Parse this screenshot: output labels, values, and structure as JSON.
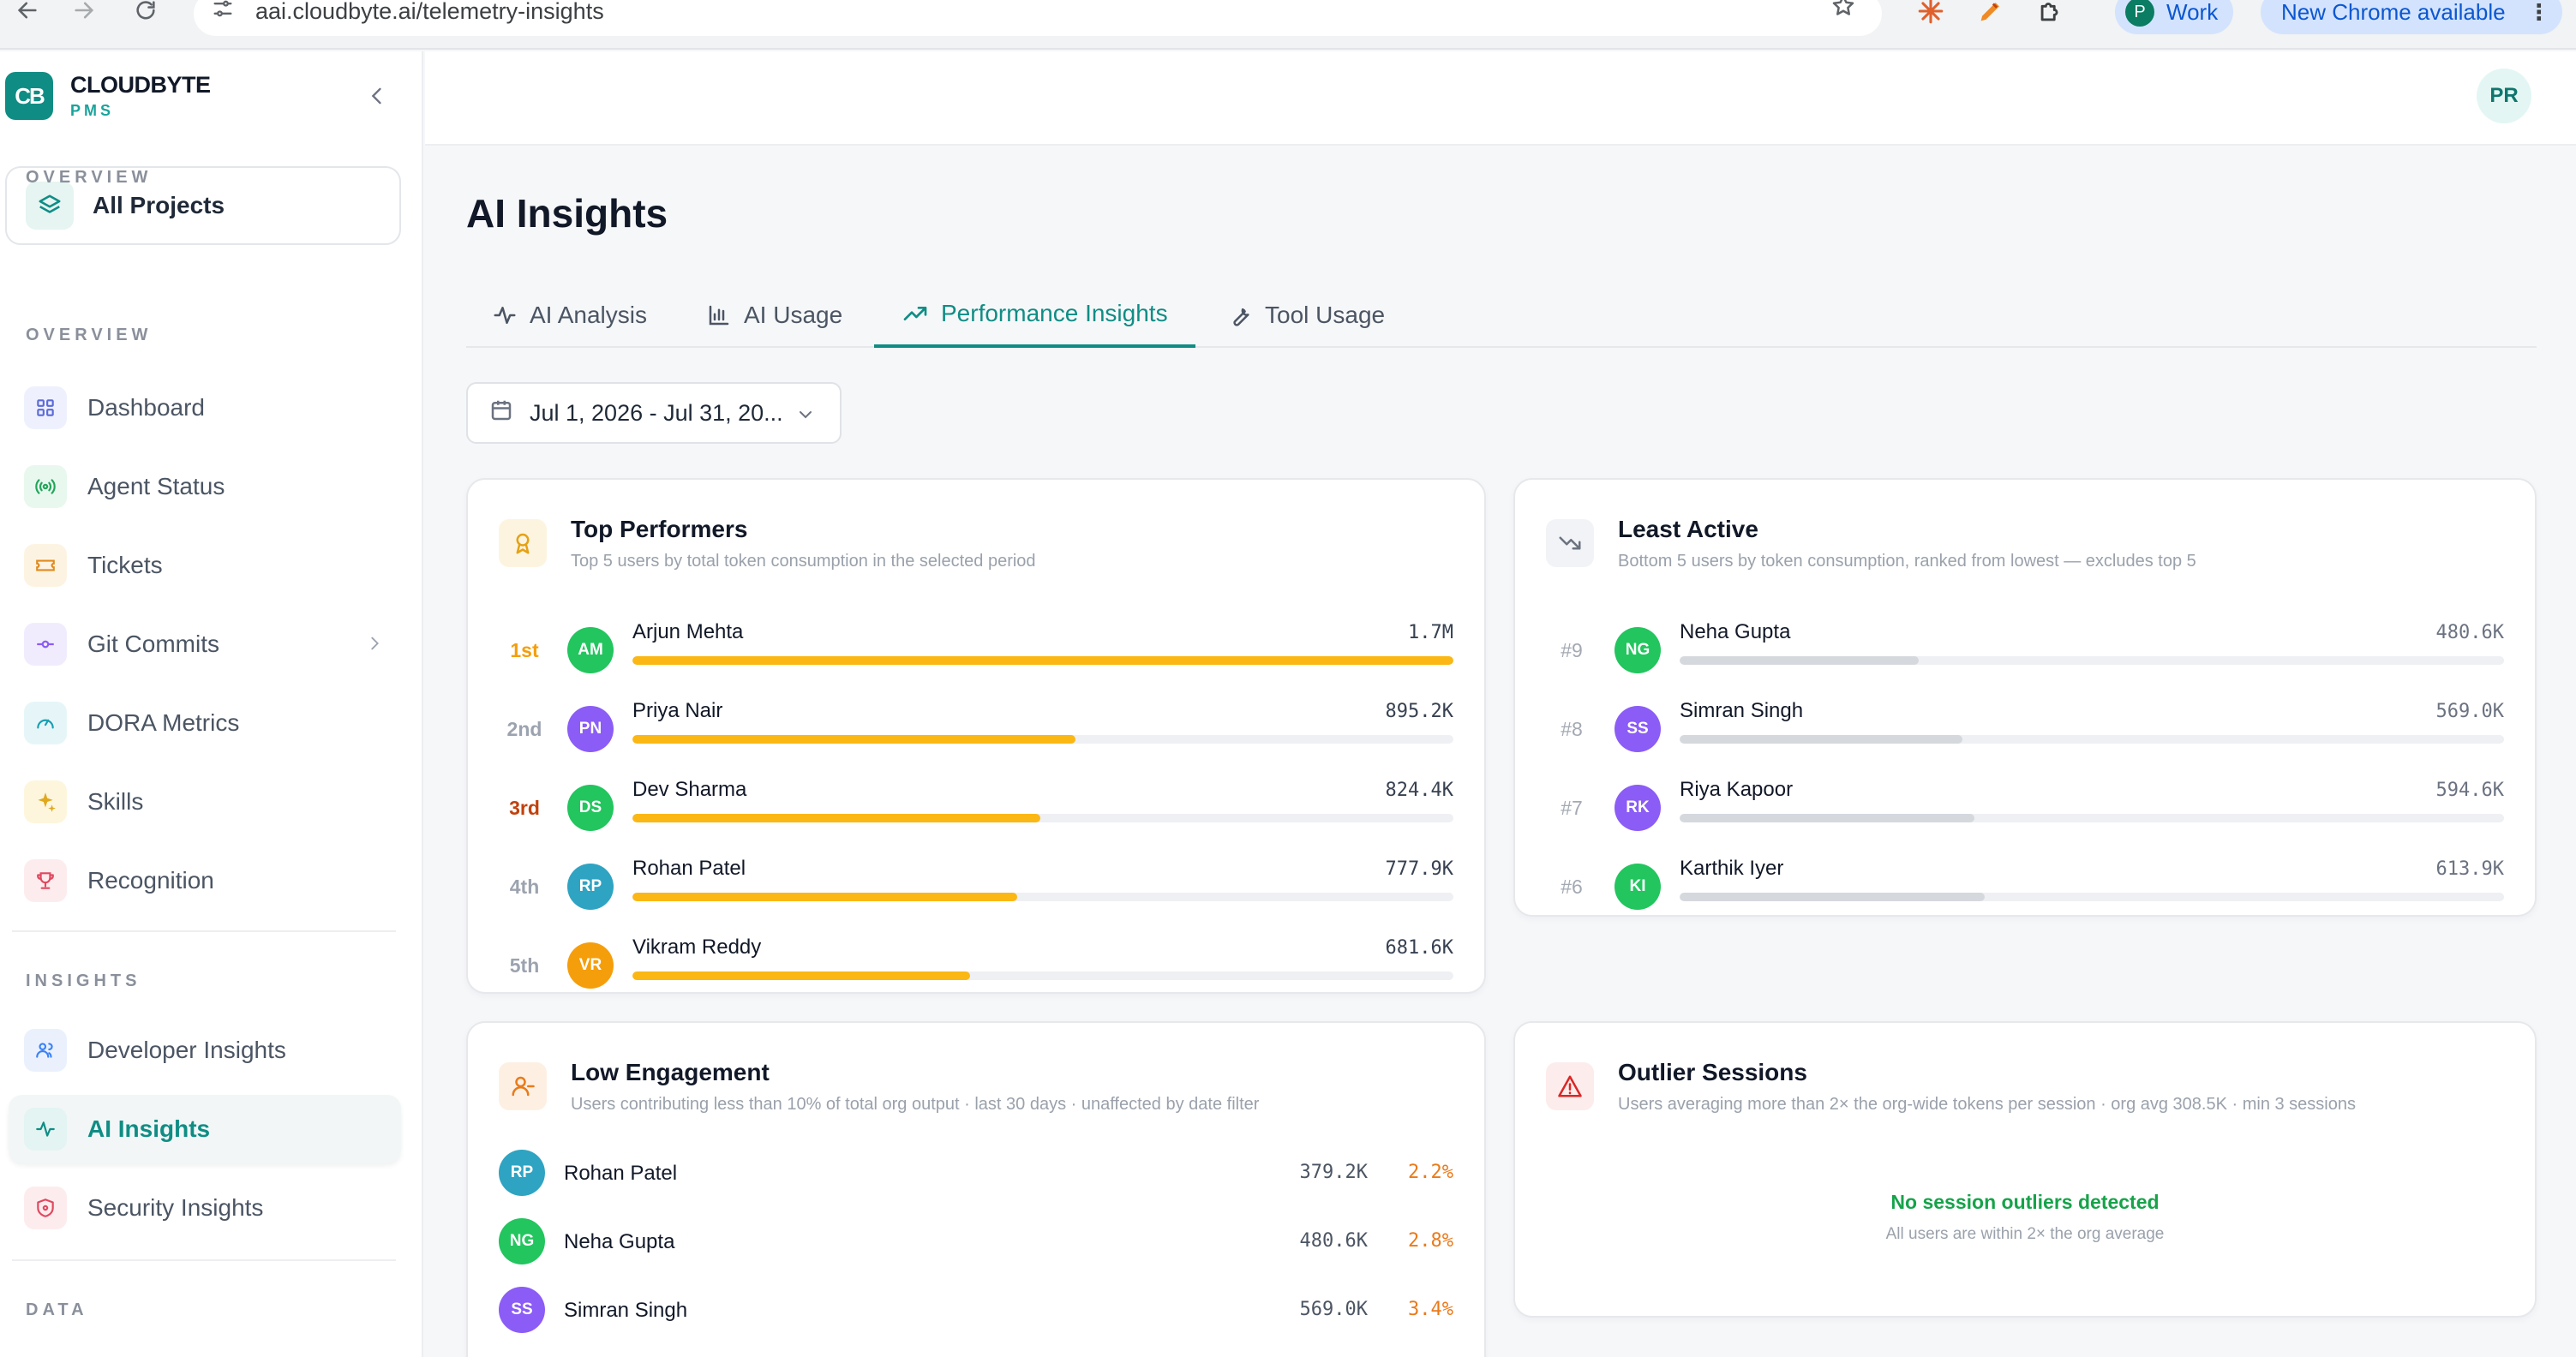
{
  "browser": {
    "url": "aai.cloudbyte.ai/telemetry-insights",
    "profile_initial": "P",
    "profile_label": "Work",
    "update_label": "New Chrome available"
  },
  "brand": {
    "name": "CLOUDBYTE",
    "sub": "PMS",
    "logo_text": "CB"
  },
  "sidebar": {
    "all_projects": "All Projects",
    "sections": {
      "overview": "OVERVIEW",
      "insights": "INSIGHTS",
      "data": "DATA"
    },
    "overview_items": [
      {
        "label": "Dashboard",
        "icon": "grid-icon"
      },
      {
        "label": "Agent Status",
        "icon": "broadcast-icon"
      },
      {
        "label": "Tickets",
        "icon": "ticket-icon"
      },
      {
        "label": "Git Commits",
        "icon": "git-commit-icon"
      },
      {
        "label": "DORA Metrics",
        "icon": "gauge-icon"
      },
      {
        "label": "Skills",
        "icon": "sparkles-icon"
      },
      {
        "label": "Recognition",
        "icon": "trophy-icon"
      }
    ],
    "insights_items": [
      {
        "label": "Developer Insights",
        "icon": "users-icon"
      },
      {
        "label": "AI Insights",
        "icon": "activity-icon",
        "active": true
      },
      {
        "label": "Security Insights",
        "icon": "shield-icon"
      }
    ]
  },
  "header": {
    "user_initials": "PR"
  },
  "page": {
    "title": "AI Insights",
    "tabs": [
      {
        "label": "AI Analysis",
        "icon": "activity-icon"
      },
      {
        "label": "AI Usage",
        "icon": "bar-chart-icon"
      },
      {
        "label": "Performance Insights",
        "icon": "trending-up-icon",
        "active": true
      },
      {
        "label": "Tool Usage",
        "icon": "wrench-icon"
      }
    ],
    "date_range": "Jul 1, 2026 - Jul 31, 20..."
  },
  "colors": {
    "accent": "#0f8d84",
    "gold_bar": "#fbb714",
    "gray_bar": "#d5d9de",
    "warning_orange": "#ea7a1a",
    "success_green": "#16a34a",
    "alert_red": "#dc2626"
  },
  "top_performers": {
    "title": "Top Performers",
    "subtitle": "Top 5 users by total token consumption in the selected period",
    "rows": [
      {
        "rank": "1st",
        "initials": "AM",
        "name": "Arjun Mehta",
        "value": "1.7M",
        "share": 1.0,
        "avatar_color": "#22c55e",
        "rank_color": "#f59e0b"
      },
      {
        "rank": "2nd",
        "initials": "PN",
        "name": "Priya Nair",
        "value": "895.2K",
        "share": 0.54,
        "avatar_color": "#8b5cf6",
        "rank_color": "#9ca3af"
      },
      {
        "rank": "3rd",
        "initials": "DS",
        "name": "Dev Sharma",
        "value": "824.4K",
        "share": 0.497,
        "avatar_color": "#22c55e",
        "rank_color": "#c2410c"
      },
      {
        "rank": "4th",
        "initials": "RP",
        "name": "Rohan Patel",
        "value": "777.9K",
        "share": 0.469,
        "avatar_color": "#2fa3c2",
        "rank_color": "#9ca3af"
      },
      {
        "rank": "5th",
        "initials": "VR",
        "name": "Vikram Reddy",
        "value": "681.6K",
        "share": 0.411,
        "avatar_color": "#f59e0b",
        "rank_color": "#9ca3af"
      }
    ]
  },
  "least_active": {
    "title": "Least Active",
    "subtitle": "Bottom 5 users by token consumption, ranked from lowest — excludes top 5",
    "rows": [
      {
        "rank": "#9",
        "initials": "NG",
        "name": "Neha Gupta",
        "value": "480.6K",
        "share": 0.29,
        "avatar_color": "#22c55e"
      },
      {
        "rank": "#8",
        "initials": "SS",
        "name": "Simran Singh",
        "value": "569.0K",
        "share": 0.343,
        "avatar_color": "#8b5cf6"
      },
      {
        "rank": "#7",
        "initials": "RK",
        "name": "Riya Kapoor",
        "value": "594.6K",
        "share": 0.358,
        "avatar_color": "#8b5cf6"
      },
      {
        "rank": "#6",
        "initials": "KI",
        "name": "Karthik Iyer",
        "value": "613.9K",
        "share": 0.37,
        "avatar_color": "#22c55e"
      }
    ]
  },
  "low_engagement": {
    "title": "Low Engagement",
    "subtitle": "Users contributing less than 10% of total org output · last 30 days · unaffected by date filter",
    "rows": [
      {
        "initials": "RP",
        "name": "Rohan Patel",
        "value": "379.2K",
        "pct": "2.2%",
        "avatar_color": "#2fa3c2"
      },
      {
        "initials": "NG",
        "name": "Neha Gupta",
        "value": "480.6K",
        "pct": "2.8%",
        "avatar_color": "#22c55e"
      },
      {
        "initials": "SS",
        "name": "Simran Singh",
        "value": "569.0K",
        "pct": "3.4%",
        "avatar_color": "#8b5cf6"
      }
    ]
  },
  "outlier_sessions": {
    "title": "Outlier Sessions",
    "subtitle": "Users averaging more than 2× the org-wide tokens per session · org avg 308.5K · min 3 sessions",
    "empty_title": "No session outliers detected",
    "empty_sub": "All users are within 2× the org average"
  }
}
